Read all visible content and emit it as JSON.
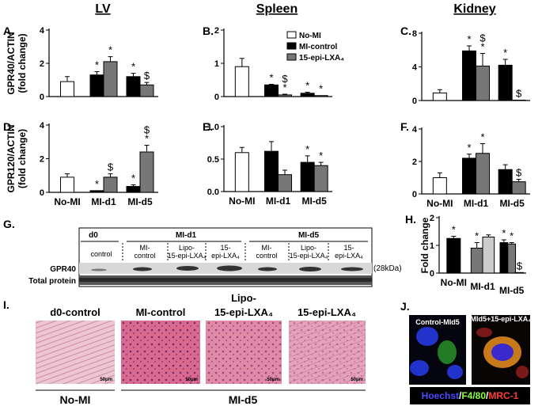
{
  "chart_data": [
    {
      "type": "bar",
      "categories": [
        null,
        null,
        null
      ],
      "ylabel": [
        "GPR40/ACTIN",
        "(fold change)"
      ],
      "ylim": [
        0,
        4
      ],
      "yticks": [
        0,
        2,
        4
      ],
      "series": [
        {
          "color": "#ffffff",
          "values": [
            0.9,
            null,
            null
          ],
          "errors": [
            0.3,
            null,
            null
          ],
          "markers": [
            null,
            null,
            null
          ]
        },
        {
          "color": "#000000",
          "values": [
            null,
            1.3,
            1.2
          ],
          "errors": [
            null,
            0.2,
            0.2
          ],
          "markers": [
            null,
            [
              "*"
            ],
            [
              "*"
            ]
          ]
        },
        {
          "color": "#777777",
          "values": [
            null,
            2.1,
            0.7
          ],
          "errors": [
            null,
            0.3,
            0.15
          ],
          "markers": [
            null,
            [
              "*"
            ],
            [
              "$"
            ]
          ]
        }
      ]
    },
    {
      "type": "bar",
      "categories": [
        null,
        null,
        null
      ],
      "ylim": [
        0,
        2
      ],
      "yticks": [
        0,
        1,
        2
      ],
      "legend": true,
      "series": [
        {
          "name": "No-MI",
          "color": "#ffffff",
          "values": [
            0.9,
            null,
            null
          ],
          "errors": [
            0.25,
            null,
            null
          ],
          "markers": [
            null,
            null,
            null
          ]
        },
        {
          "name": "MI-control",
          "color": "#000000",
          "values": [
            null,
            0.35,
            0.1
          ],
          "errors": [
            null,
            0.02,
            0.03
          ],
          "markers": [
            null,
            [
              "*"
            ],
            [
              "*"
            ]
          ]
        },
        {
          "name": "15-epi-LXA₄",
          "color": "#777777",
          "values": [
            null,
            0.05,
            0.03
          ],
          "errors": [
            null,
            0.02,
            null
          ],
          "markers": [
            null,
            [
              "$",
              "*"
            ],
            [
              "*"
            ]
          ]
        }
      ]
    },
    {
      "type": "bar",
      "categories": [
        null,
        null,
        null
      ],
      "ylim": [
        0,
        8
      ],
      "yticks": [
        0,
        4,
        8
      ],
      "series": [
        {
          "color": "#ffffff",
          "values": [
            0.9,
            null,
            null
          ],
          "errors": [
            0.4,
            null,
            null
          ],
          "markers": [
            null,
            null,
            null
          ]
        },
        {
          "color": "#000000",
          "values": [
            null,
            5.9,
            4.2
          ],
          "errors": [
            null,
            0.6,
            0.7
          ],
          "markers": [
            null,
            [
              "*"
            ],
            [
              "*"
            ]
          ]
        },
        {
          "color": "#777777",
          "values": [
            null,
            4.1,
            0.05
          ],
          "errors": [
            null,
            1.5,
            null
          ],
          "markers": [
            null,
            [
              "$",
              "*"
            ],
            [
              "$"
            ]
          ]
        }
      ]
    },
    {
      "type": "bar",
      "categories": [
        "No-MI",
        "MI-d1",
        "MI-d5"
      ],
      "ylabel": [
        "GPR120/ACTIN",
        "(fold change)"
      ],
      "ylim": [
        0,
        4
      ],
      "yticks": [
        0,
        2,
        4
      ],
      "series": [
        {
          "color": "#ffffff",
          "values": [
            0.9,
            null,
            null
          ],
          "errors": [
            0.2,
            null,
            null
          ],
          "markers": [
            null,
            null,
            null
          ]
        },
        {
          "color": "#000000",
          "values": [
            null,
            0.1,
            0.35
          ],
          "errors": [
            null,
            null,
            0.1
          ],
          "markers": [
            null,
            [
              "*"
            ],
            [
              "*"
            ]
          ]
        },
        {
          "color": "#777777",
          "values": [
            null,
            0.9,
            2.4
          ],
          "errors": [
            null,
            0.2,
            0.4
          ],
          "markers": [
            null,
            [
              "$"
            ],
            [
              "$",
              "*"
            ]
          ]
        }
      ]
    },
    {
      "type": "bar",
      "categories": [
        "No-MI",
        "MI-d1",
        "MI-d5"
      ],
      "ylim": [
        0,
        1
      ],
      "yticks": [
        {
          "value": 0,
          "label": "0.0"
        },
        {
          "value": 0.5,
          "label": "0.5"
        },
        {
          "value": 1,
          "label": "1.0"
        }
      ],
      "series": [
        {
          "color": "#ffffff",
          "values": [
            0.6,
            null,
            null
          ],
          "errors": [
            0.08,
            null,
            null
          ],
          "markers": [
            null,
            null,
            null
          ]
        },
        {
          "color": "#000000",
          "values": [
            null,
            0.62,
            0.45
          ],
          "errors": [
            null,
            0.15,
            0.1
          ],
          "markers": [
            null,
            null,
            [
              "*"
            ]
          ]
        },
        {
          "color": "#777777",
          "values": [
            null,
            0.26,
            0.4
          ],
          "errors": [
            null,
            0.07,
            0.05
          ],
          "markers": [
            null,
            null,
            [
              "*"
            ]
          ]
        }
      ]
    },
    {
      "type": "bar",
      "categories": [
        "No-MI",
        "MI-d1",
        "MI-d5"
      ],
      "ylim": [
        0,
        4
      ],
      "yticks": [
        0,
        2,
        4
      ],
      "series": [
        {
          "color": "#ffffff",
          "values": [
            1.0,
            null,
            null
          ],
          "errors": [
            0.3,
            null,
            null
          ],
          "markers": [
            null,
            null,
            null
          ]
        },
        {
          "color": "#000000",
          "values": [
            null,
            2.2,
            1.5
          ],
          "errors": [
            null,
            0.25,
            0.3
          ],
          "markers": [
            null,
            [
              "*"
            ],
            null
          ]
        },
        {
          "color": "#777777",
          "values": [
            null,
            2.5,
            0.75
          ],
          "errors": [
            null,
            0.6,
            0.15
          ],
          "markers": [
            null,
            [
              "*"
            ],
            [
              "$"
            ]
          ]
        }
      ]
    },
    {
      "type": "bar",
      "categories": [
        "No-MI",
        "MI-d1",
        "MI-d5"
      ],
      "ylabel": [
        "Fold change"
      ],
      "ylim": [
        0,
        2
      ],
      "yticks": [
        0,
        1,
        2
      ],
      "series": [
        {
          "color": "#000000",
          "values": [
            1.25,
            null,
            1.1
          ],
          "errors": [
            0.08,
            null,
            0.1
          ],
          "markers": [
            [
              "*"
            ],
            null,
            [
              "*"
            ]
          ]
        },
        {
          "color": "#777777",
          "values": [
            null,
            0.9,
            1.05
          ],
          "errors": [
            null,
            0.2,
            0.05
          ],
          "markers": [
            null,
            [
              "*"
            ],
            [
              "*"
            ]
          ]
        },
        {
          "color": "#cccccc",
          "values": [
            null,
            1.3,
            0.02
          ],
          "errors": [
            null,
            0.08,
            null
          ],
          "markers": [
            null,
            null,
            [
              "$"
            ]
          ]
        }
      ]
    }
  ],
  "headers": [
    "LV",
    "Spleen",
    "Kidney"
  ],
  "panel_labels": [
    "A.",
    "B.",
    "C.",
    "D.",
    "E.",
    "F.",
    "G.",
    "H.",
    "I.",
    "J."
  ],
  "blot": {
    "groups": [
      "d0",
      "MI-d1",
      "MI-d5"
    ],
    "lanes": [
      [
        "control"
      ],
      [
        "MI-",
        "control"
      ],
      [
        "Lipo-",
        "15-epi-LXA₄"
      ],
      [
        "15-",
        "epi-LXA₄"
      ],
      [
        "MI-",
        "control"
      ],
      [
        "Lipo-",
        "15-epi-LXA₄"
      ],
      [
        "15-",
        "epi-LXA₄"
      ]
    ],
    "rows": [
      "GPR40",
      "Total protein"
    ],
    "size": "(28kDa)"
  },
  "histology": {
    "titles": [
      [
        "d0-control"
      ],
      [
        "MI-control"
      ],
      [
        "Lipo-",
        "15-epi-LXA₄"
      ],
      [
        "15-epi-LXA₄"
      ]
    ],
    "scale": "50μm",
    "groups": [
      "No-MI",
      "MI-d5"
    ]
  },
  "staining": {
    "titles": [
      "Control-MId5",
      "MId5+15-epi-LXA₄"
    ],
    "legend": [
      {
        "text": "Hoechst",
        "color": "#4a4aff"
      },
      {
        "text": "/",
        "color": "#ffffff"
      },
      {
        "text": "F4/80",
        "color": "#8cff3a"
      },
      {
        "text": "/",
        "color": "#ffffff"
      },
      {
        "text": "MRC-1",
        "color": "#ff3a3a"
      }
    ]
  }
}
